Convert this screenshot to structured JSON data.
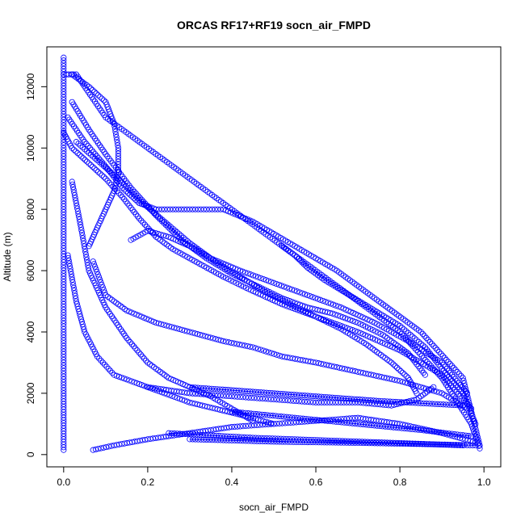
{
  "chart_data": {
    "type": "scatter",
    "title": "ORCAS RF17+RF19 socn_air_FMPD",
    "xlabel": "socn_air_FMPD",
    "ylabel": "Altitude (m)",
    "xlim": [
      -0.04,
      1.04
    ],
    "ylim": [
      -400,
      13300
    ],
    "x_ticks": [
      {
        "value": 0.0,
        "label": "0.0"
      },
      {
        "value": 0.2,
        "label": "0.2"
      },
      {
        "value": 0.4,
        "label": "0.4"
      },
      {
        "value": 0.6,
        "label": "0.6"
      },
      {
        "value": 0.8,
        "label": "0.8"
      },
      {
        "value": 1.0,
        "label": "1.0"
      }
    ],
    "y_ticks": [
      {
        "value": 0,
        "label": "0"
      },
      {
        "value": 2000,
        "label": "2000"
      },
      {
        "value": 4000,
        "label": "4000"
      },
      {
        "value": 6000,
        "label": "6000"
      },
      {
        "value": 8000,
        "label": "8000"
      },
      {
        "value": 10000,
        "label": "10000"
      },
      {
        "value": 12000,
        "label": "12000"
      }
    ],
    "grid": false,
    "legend": "none",
    "marker": "open-circle",
    "color": "#0000ff",
    "series": [
      {
        "connect": false,
        "x": [
          0.0,
          0.0,
          0.0,
          0.0,
          0.0,
          0.0,
          0.0
        ],
        "y": [
          150,
          2000,
          4000,
          6000,
          8000,
          10000,
          12950
        ]
      },
      {
        "connect": false,
        "x": [
          0.0,
          0.03,
          0.1,
          0.3,
          0.55,
          0.8,
          0.9,
          0.97,
          0.99
        ],
        "y": [
          12400,
          12400,
          11000,
          9000,
          6500,
          4000,
          2500,
          1000,
          200
        ]
      },
      {
        "connect": false,
        "x": [
          0.01,
          0.05,
          0.1,
          0.14,
          0.18,
          0.22,
          0.26,
          0.3,
          0.34,
          0.38,
          0.45,
          0.55,
          0.65,
          0.75,
          0.85,
          0.95,
          0.99
        ],
        "y": [
          11000,
          10200,
          9400,
          8700,
          8200,
          8000,
          8000,
          8000,
          8000,
          8000,
          7600,
          6800,
          6000,
          5000,
          4000,
          2500,
          300
        ]
      },
      {
        "connect": false,
        "x": [
          0.0,
          0.02,
          0.06,
          0.1,
          0.14,
          0.18,
          0.22,
          0.26,
          0.3,
          0.34,
          0.38,
          0.44,
          0.52,
          0.6,
          0.7,
          0.8,
          0.9,
          0.97
        ],
        "y": [
          10500,
          10000,
          9500,
          9000,
          8400,
          7700,
          7100,
          6700,
          6400,
          6100,
          5800,
          5400,
          4900,
          4500,
          4000,
          3400,
          2600,
          1500
        ]
      },
      {
        "connect": false,
        "x": [
          0.02,
          0.06,
          0.1,
          0.16,
          0.22,
          0.28,
          0.34,
          0.4,
          0.46,
          0.52,
          0.58,
          0.64,
          0.7,
          0.76,
          0.82,
          0.86
        ],
        "y": [
          11500,
          10600,
          9800,
          8700,
          7800,
          7000,
          6400,
          5900,
          5500,
          5100,
          4800,
          4600,
          4300,
          3900,
          3300,
          2600
        ]
      },
      {
        "connect": false,
        "x": [
          0.03,
          0.08,
          0.13,
          0.18,
          0.24,
          0.3,
          0.36,
          0.42,
          0.48,
          0.54,
          0.6,
          0.66,
          0.72,
          0.78,
          0.82,
          0.84
        ],
        "y": [
          10200,
          9600,
          9000,
          8300,
          7600,
          6900,
          6300,
          5800,
          5300,
          4900,
          4500,
          4100,
          3600,
          3000,
          2500,
          2000
        ]
      },
      {
        "connect": false,
        "x": [
          0.02,
          0.06,
          0.1,
          0.12,
          0.13,
          0.13,
          0.12,
          0.1,
          0.08,
          0.06
        ],
        "y": [
          12400,
          12000,
          11500,
          10800,
          10000,
          9200,
          8600,
          8000,
          7400,
          6800
        ]
      },
      {
        "connect": false,
        "x": [
          0.02,
          0.04,
          0.06,
          0.1,
          0.15,
          0.2,
          0.25,
          0.3,
          0.35,
          0.4,
          0.45
        ],
        "y": [
          8900,
          7500,
          6000,
          4800,
          3800,
          3000,
          2500,
          2200,
          1900,
          1500,
          1100
        ]
      },
      {
        "connect": false,
        "x": [
          0.01,
          0.03,
          0.05,
          0.08,
          0.12,
          0.18,
          0.24,
          0.3,
          0.36,
          0.42,
          0.5
        ],
        "y": [
          6500,
          5000,
          4000,
          3200,
          2600,
          2300,
          2000,
          1700,
          1500,
          1300,
          1000
        ]
      },
      {
        "connect": false,
        "x": [
          0.07,
          0.1,
          0.15,
          0.22,
          0.3,
          0.38,
          0.45,
          0.52,
          0.6,
          0.7,
          0.8,
          0.9,
          0.96
        ],
        "y": [
          6300,
          5200,
          4700,
          4300,
          4000,
          3700,
          3500,
          3200,
          3000,
          2700,
          2400,
          2000,
          1500
        ]
      },
      {
        "connect": false,
        "x": [
          0.07,
          0.12,
          0.2,
          0.3,
          0.4,
          0.5,
          0.6,
          0.7,
          0.8,
          0.9,
          0.98
        ],
        "y": [
          150,
          300,
          500,
          700,
          900,
          1000,
          1100,
          1200,
          1000,
          700,
          400
        ]
      },
      {
        "connect": false,
        "x": [
          0.16,
          0.2,
          0.25,
          0.3,
          0.35,
          0.42,
          0.5,
          0.58,
          0.66,
          0.74,
          0.82,
          0.9,
          0.96
        ],
        "y": [
          7000,
          7300,
          7100,
          6800,
          6400,
          6000,
          5600,
          5200,
          4800,
          4300,
          3700,
          3000,
          2000
        ]
      },
      {
        "connect": false,
        "x": [
          0.52,
          0.55,
          0.58,
          0.62,
          0.68,
          0.74,
          0.8,
          0.86,
          0.9,
          0.95,
          0.98
        ],
        "y": [
          6800,
          6500,
          6100,
          5700,
          5200,
          4700,
          4200,
          3500,
          2800,
          2000,
          1000
        ]
      },
      {
        "connect": false,
        "x": [
          0.2,
          0.3,
          0.4,
          0.5,
          0.6,
          0.7,
          0.78,
          0.84,
          0.88
        ],
        "y": [
          2200,
          2000,
          1900,
          1800,
          1700,
          1700,
          1600,
          1800,
          2200
        ]
      },
      {
        "connect": true,
        "x": [
          0.3,
          0.45,
          0.6,
          0.75,
          0.95
        ],
        "y": [
          2200,
          2050,
          1900,
          1750,
          1600
        ]
      },
      {
        "connect": true,
        "x": [
          0.25,
          0.45,
          0.65,
          0.85,
          0.95
        ],
        "y": [
          700,
          550,
          450,
          350,
          300
        ]
      },
      {
        "connect": true,
        "x": [
          0.3,
          0.5,
          0.7,
          0.9,
          0.98
        ],
        "y": [
          500,
          420,
          380,
          330,
          300
        ]
      },
      {
        "connect": true,
        "x": [
          0.4,
          0.55,
          0.7,
          0.85,
          0.97
        ],
        "y": [
          1400,
          1200,
          1000,
          800,
          600
        ]
      }
    ]
  }
}
